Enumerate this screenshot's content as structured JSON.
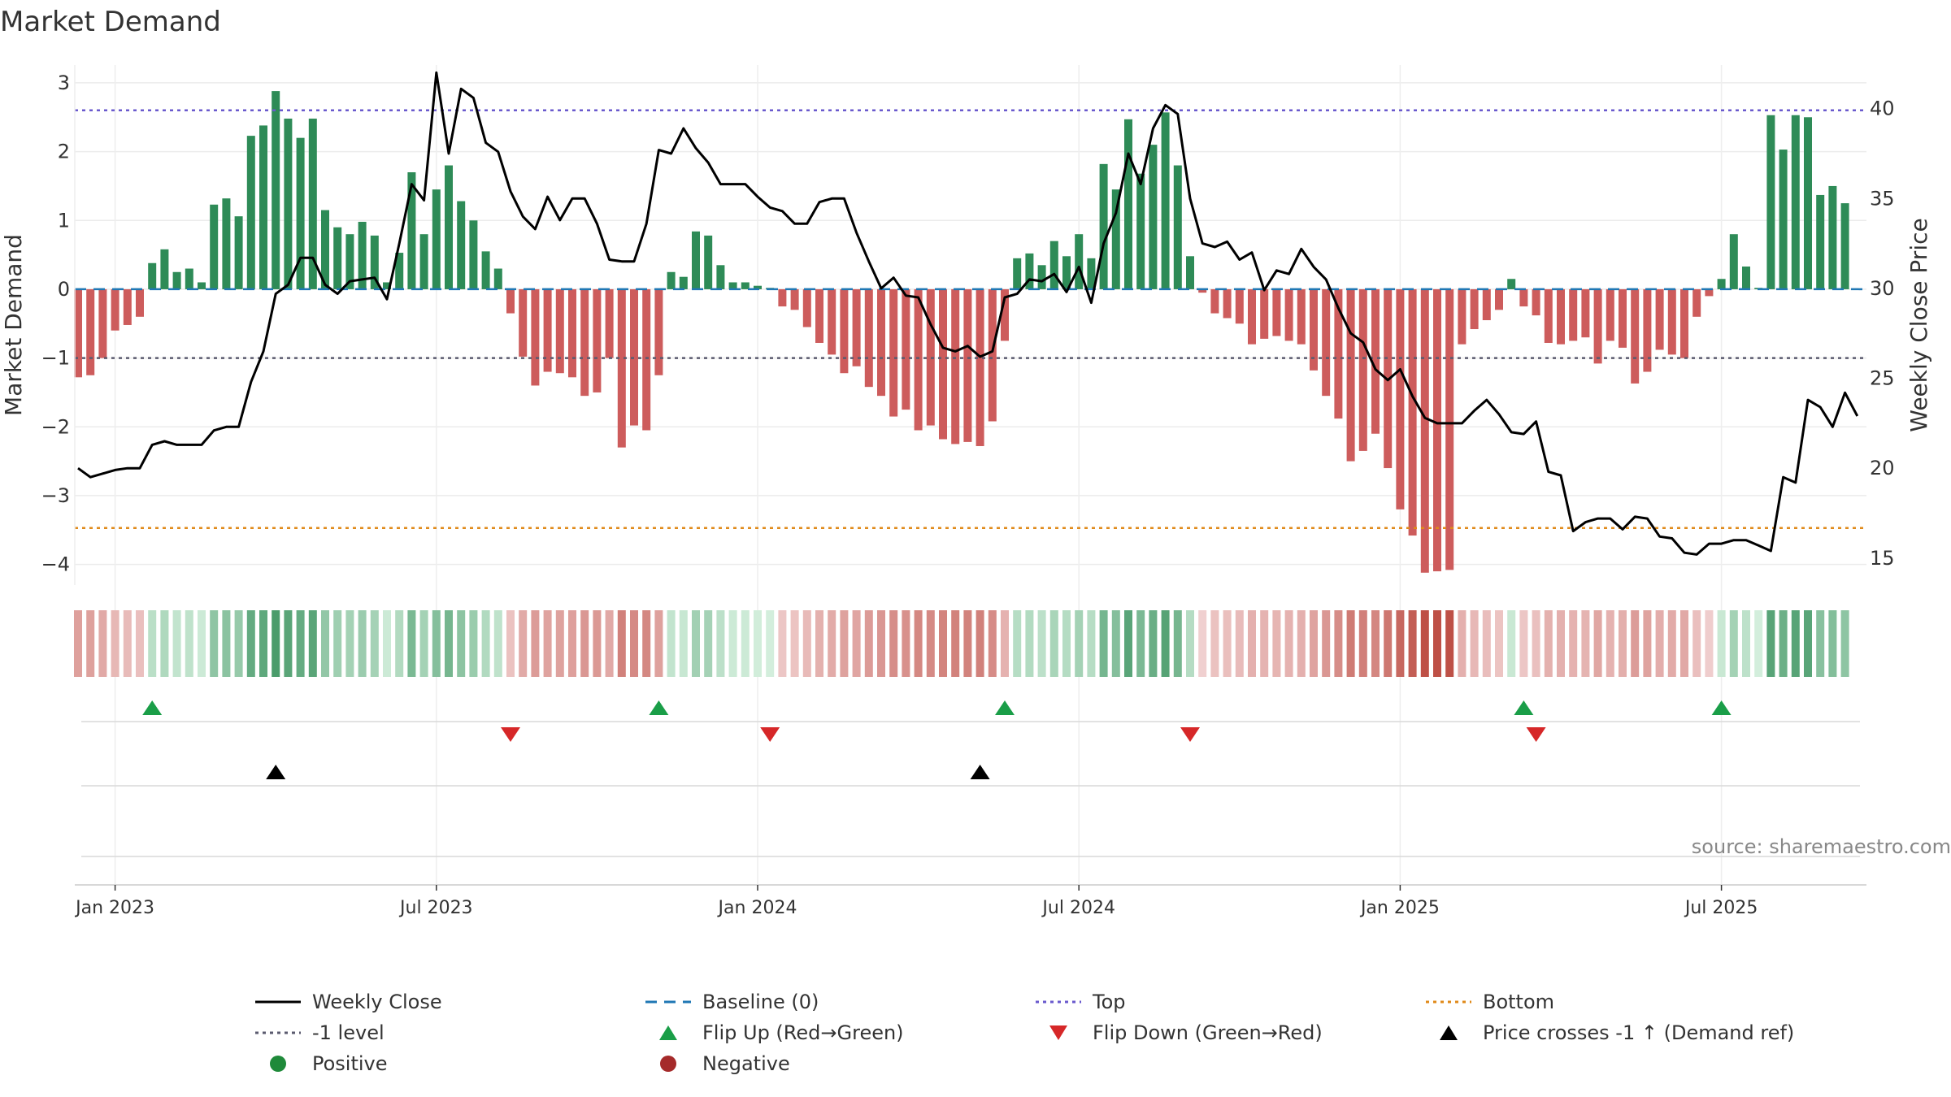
{
  "title": "Market Demand",
  "source": "source: sharemaestro.com",
  "colors": {
    "pos": "#2e8b57",
    "neg": "#cd5c5c",
    "price": "#000000",
    "baseline": "#1f77b4",
    "top": "#6a5acd",
    "bottom": "#e08a1a",
    "ref": "#5a5a6e",
    "flipUp": "#1a9e48",
    "flipDown": "#d62728"
  },
  "chart_data": {
    "type": "bar",
    "title": "Market Demand",
    "ylabel_left": "Market Demand",
    "ylabel_right": "Weekly Close Price",
    "ylim_left": [
      -4.3,
      3.2
    ],
    "ylim_right": [
      13.5,
      42.2
    ],
    "yticks_left": [
      3,
      2,
      1,
      0,
      -1,
      -2,
      -3,
      -4
    ],
    "yticks_right": [
      40,
      35,
      30,
      25,
      20,
      15
    ],
    "ref_lines": {
      "top": 2.6,
      "bottom": -3.47,
      "neg1": -1
    },
    "xticks": [
      {
        "label": "Jan 2023",
        "week": 3
      },
      {
        "label": "Jul 2023",
        "week": 29
      },
      {
        "label": "Jan 2024",
        "week": 55
      },
      {
        "label": "Jul 2024",
        "week": 81
      },
      {
        "label": "Jan 2025",
        "week": 107
      },
      {
        "label": "Jul 2025",
        "week": 133
      }
    ],
    "demand": [
      -1.28,
      -1.25,
      -1.0,
      -0.6,
      -0.52,
      -0.4,
      0.38,
      0.58,
      0.25,
      0.3,
      0.1,
      1.23,
      1.32,
      1.06,
      2.23,
      2.38,
      2.88,
      2.48,
      2.2,
      2.48,
      1.15,
      0.9,
      0.8,
      0.98,
      0.78,
      0.1,
      0.53,
      1.7,
      0.8,
      1.45,
      1.8,
      1.28,
      1.0,
      0.55,
      0.3,
      -0.35,
      -0.98,
      -1.4,
      -1.2,
      -1.22,
      -1.28,
      -1.55,
      -1.5,
      -1.0,
      -2.3,
      -1.98,
      -2.05,
      -1.25,
      0.25,
      0.18,
      0.84,
      0.78,
      0.35,
      0.1,
      0.1,
      0.05,
      0.02,
      -0.25,
      -0.3,
      -0.55,
      -0.78,
      -0.95,
      -1.22,
      -1.12,
      -1.42,
      -1.55,
      -1.85,
      -1.75,
      -2.05,
      -1.98,
      -2.18,
      -2.25,
      -2.22,
      -2.28,
      -1.92,
      -0.75,
      0.45,
      0.52,
      0.35,
      0.7,
      0.48,
      0.8,
      0.45,
      1.82,
      1.45,
      2.47,
      1.68,
      2.1,
      2.57,
      1.8,
      0.48,
      -0.05,
      -0.35,
      -0.42,
      -0.5,
      -0.8,
      -0.72,
      -0.68,
      -0.75,
      -0.8,
      -1.18,
      -1.55,
      -1.88,
      -2.5,
      -2.35,
      -2.1,
      -2.6,
      -3.2,
      -3.58,
      -4.12,
      -4.1,
      -4.08,
      -0.8,
      -0.58,
      -0.45,
      -0.3,
      0.15,
      -0.25,
      -0.38,
      -0.78,
      -0.8,
      -0.75,
      -0.7,
      -1.08,
      -0.75,
      -0.85,
      -1.37,
      -1.2,
      -0.88,
      -0.95,
      -1.0,
      -0.4,
      -0.1,
      0.15,
      0.8,
      0.33,
      0.02,
      2.53,
      2.03,
      2.53,
      2.5,
      1.37,
      1.5,
      1.25
    ],
    "price": [
      20.0,
      19.5,
      19.7,
      19.9,
      20.0,
      20.0,
      21.3,
      21.5,
      21.3,
      21.3,
      21.3,
      22.1,
      22.3,
      22.3,
      24.8,
      26.5,
      29.7,
      30.2,
      31.7,
      31.7,
      30.2,
      29.7,
      30.4,
      30.5,
      30.6,
      29.4,
      32.5,
      35.8,
      34.9,
      42.0,
      37.5,
      41.1,
      40.6,
      38.1,
      37.6,
      35.4,
      34.0,
      33.3,
      35.1,
      33.8,
      35.0,
      35.0,
      33.6,
      31.6,
      31.5,
      31.5,
      33.6,
      37.7,
      37.5,
      38.9,
      37.8,
      37.0,
      35.8,
      35.8,
      35.8,
      35.1,
      34.5,
      34.3,
      33.6,
      33.6,
      34.8,
      35.0,
      35.0,
      33.1,
      31.5,
      30.0,
      30.6,
      29.6,
      29.5,
      28.0,
      26.7,
      26.5,
      26.8,
      26.2,
      26.5,
      29.5,
      29.7,
      30.5,
      30.4,
      30.8,
      29.8,
      31.2,
      29.2,
      32.5,
      34.2,
      37.5,
      35.8,
      38.9,
      40.2,
      39.7,
      35.0,
      32.5,
      32.3,
      32.6,
      31.6,
      32.0,
      29.9,
      31.0,
      30.8,
      32.2,
      31.2,
      30.5,
      28.9,
      27.5,
      27.0,
      25.5,
      24.9,
      25.5,
      24.0,
      22.8,
      22.5,
      22.5,
      22.5,
      23.2,
      23.8,
      23.0,
      22.0,
      21.9,
      22.6,
      19.8,
      19.6,
      16.5,
      17.0,
      17.2,
      17.2,
      16.6,
      17.3,
      17.2,
      16.2,
      16.1,
      15.3,
      15.2,
      15.8,
      15.8,
      16.0,
      16.0,
      15.7,
      15.4,
      19.5,
      19.2,
      23.8,
      23.4,
      22.3,
      24.2,
      22.9
    ],
    "flip_up_weeks": [
      6,
      47,
      75,
      117,
      133
    ],
    "flip_down_weeks": [
      35,
      56,
      90,
      118
    ],
    "price_cross_weeks": [
      16,
      73
    ]
  },
  "legend": {
    "weekly_close": "Weekly Close",
    "baseline": "Baseline (0)",
    "top": "Top",
    "bottom": "Bottom",
    "neg1": "-1 level",
    "flip_up": "Flip Up (Red→Green)",
    "flip_down": "Flip Down (Green→Red)",
    "price_cross": "Price crosses -1 ↑ (Demand ref)",
    "positive": "Positive",
    "negative": "Negative"
  }
}
